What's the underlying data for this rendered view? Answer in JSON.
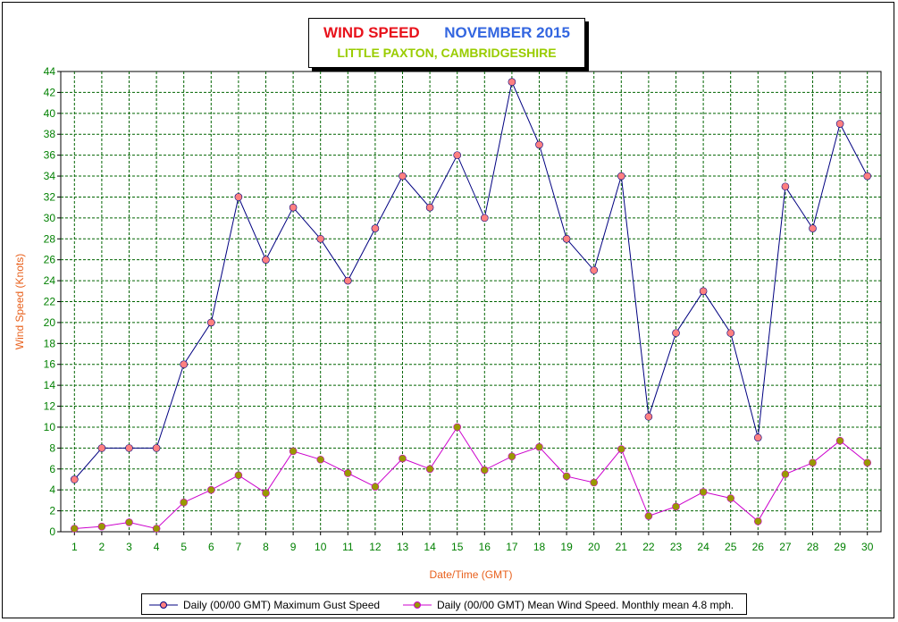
{
  "title": {
    "part1": "WIND SPEED",
    "part2": "NOVEMBER 2015",
    "subtitle": "LITTLE PAXTON, CAMBRIDGESHIRE"
  },
  "colors": {
    "title_part1": "#e8121b",
    "title_part2": "#3366e0",
    "subtitle": "#99cc00",
    "axis_label": "#e8601c",
    "tick_label": "#008000",
    "grid": "#006400",
    "gust_line": "#000080",
    "gust_marker": "#ff8080",
    "mean_line": "#cc00cc",
    "mean_marker": "#999900"
  },
  "chart_data": {
    "type": "line",
    "xlabel": "Date/Time (GMT)",
    "ylabel": "Wind Speed (Knots)",
    "ylim": [
      0,
      44
    ],
    "ytick_step": 2,
    "grid": true,
    "legend_position": "bottom",
    "categories": [
      "1",
      "2",
      "3",
      "4",
      "5",
      "6",
      "7",
      "8",
      "9",
      "10",
      "11",
      "12",
      "13",
      "14",
      "15",
      "16",
      "17",
      "18",
      "19",
      "20",
      "21",
      "22",
      "23",
      "24",
      "25",
      "26",
      "27",
      "28",
      "29",
      "30"
    ],
    "series": [
      {
        "name": "Daily (00/00 GMT) Maximum Gust Speed",
        "values": [
          5,
          8,
          8,
          8,
          16,
          20,
          32,
          26,
          31,
          28,
          24,
          29,
          34,
          31,
          36,
          30,
          43,
          37,
          28,
          25,
          34,
          11,
          19,
          23,
          19,
          9,
          33,
          29,
          39,
          34
        ]
      },
      {
        "name": "Daily (00/00 GMT) Mean Wind Speed. Monthly mean 4.8 mph.",
        "values": [
          0.3,
          0.5,
          0.9,
          0.3,
          2.8,
          4.0,
          5.4,
          3.7,
          7.7,
          6.9,
          5.6,
          4.3,
          7.0,
          6.0,
          10.0,
          5.9,
          7.2,
          8.1,
          5.3,
          4.7,
          7.9,
          1.5,
          2.4,
          3.8,
          3.2,
          1.0,
          5.5,
          6.6,
          8.7,
          6.6
        ]
      }
    ]
  }
}
